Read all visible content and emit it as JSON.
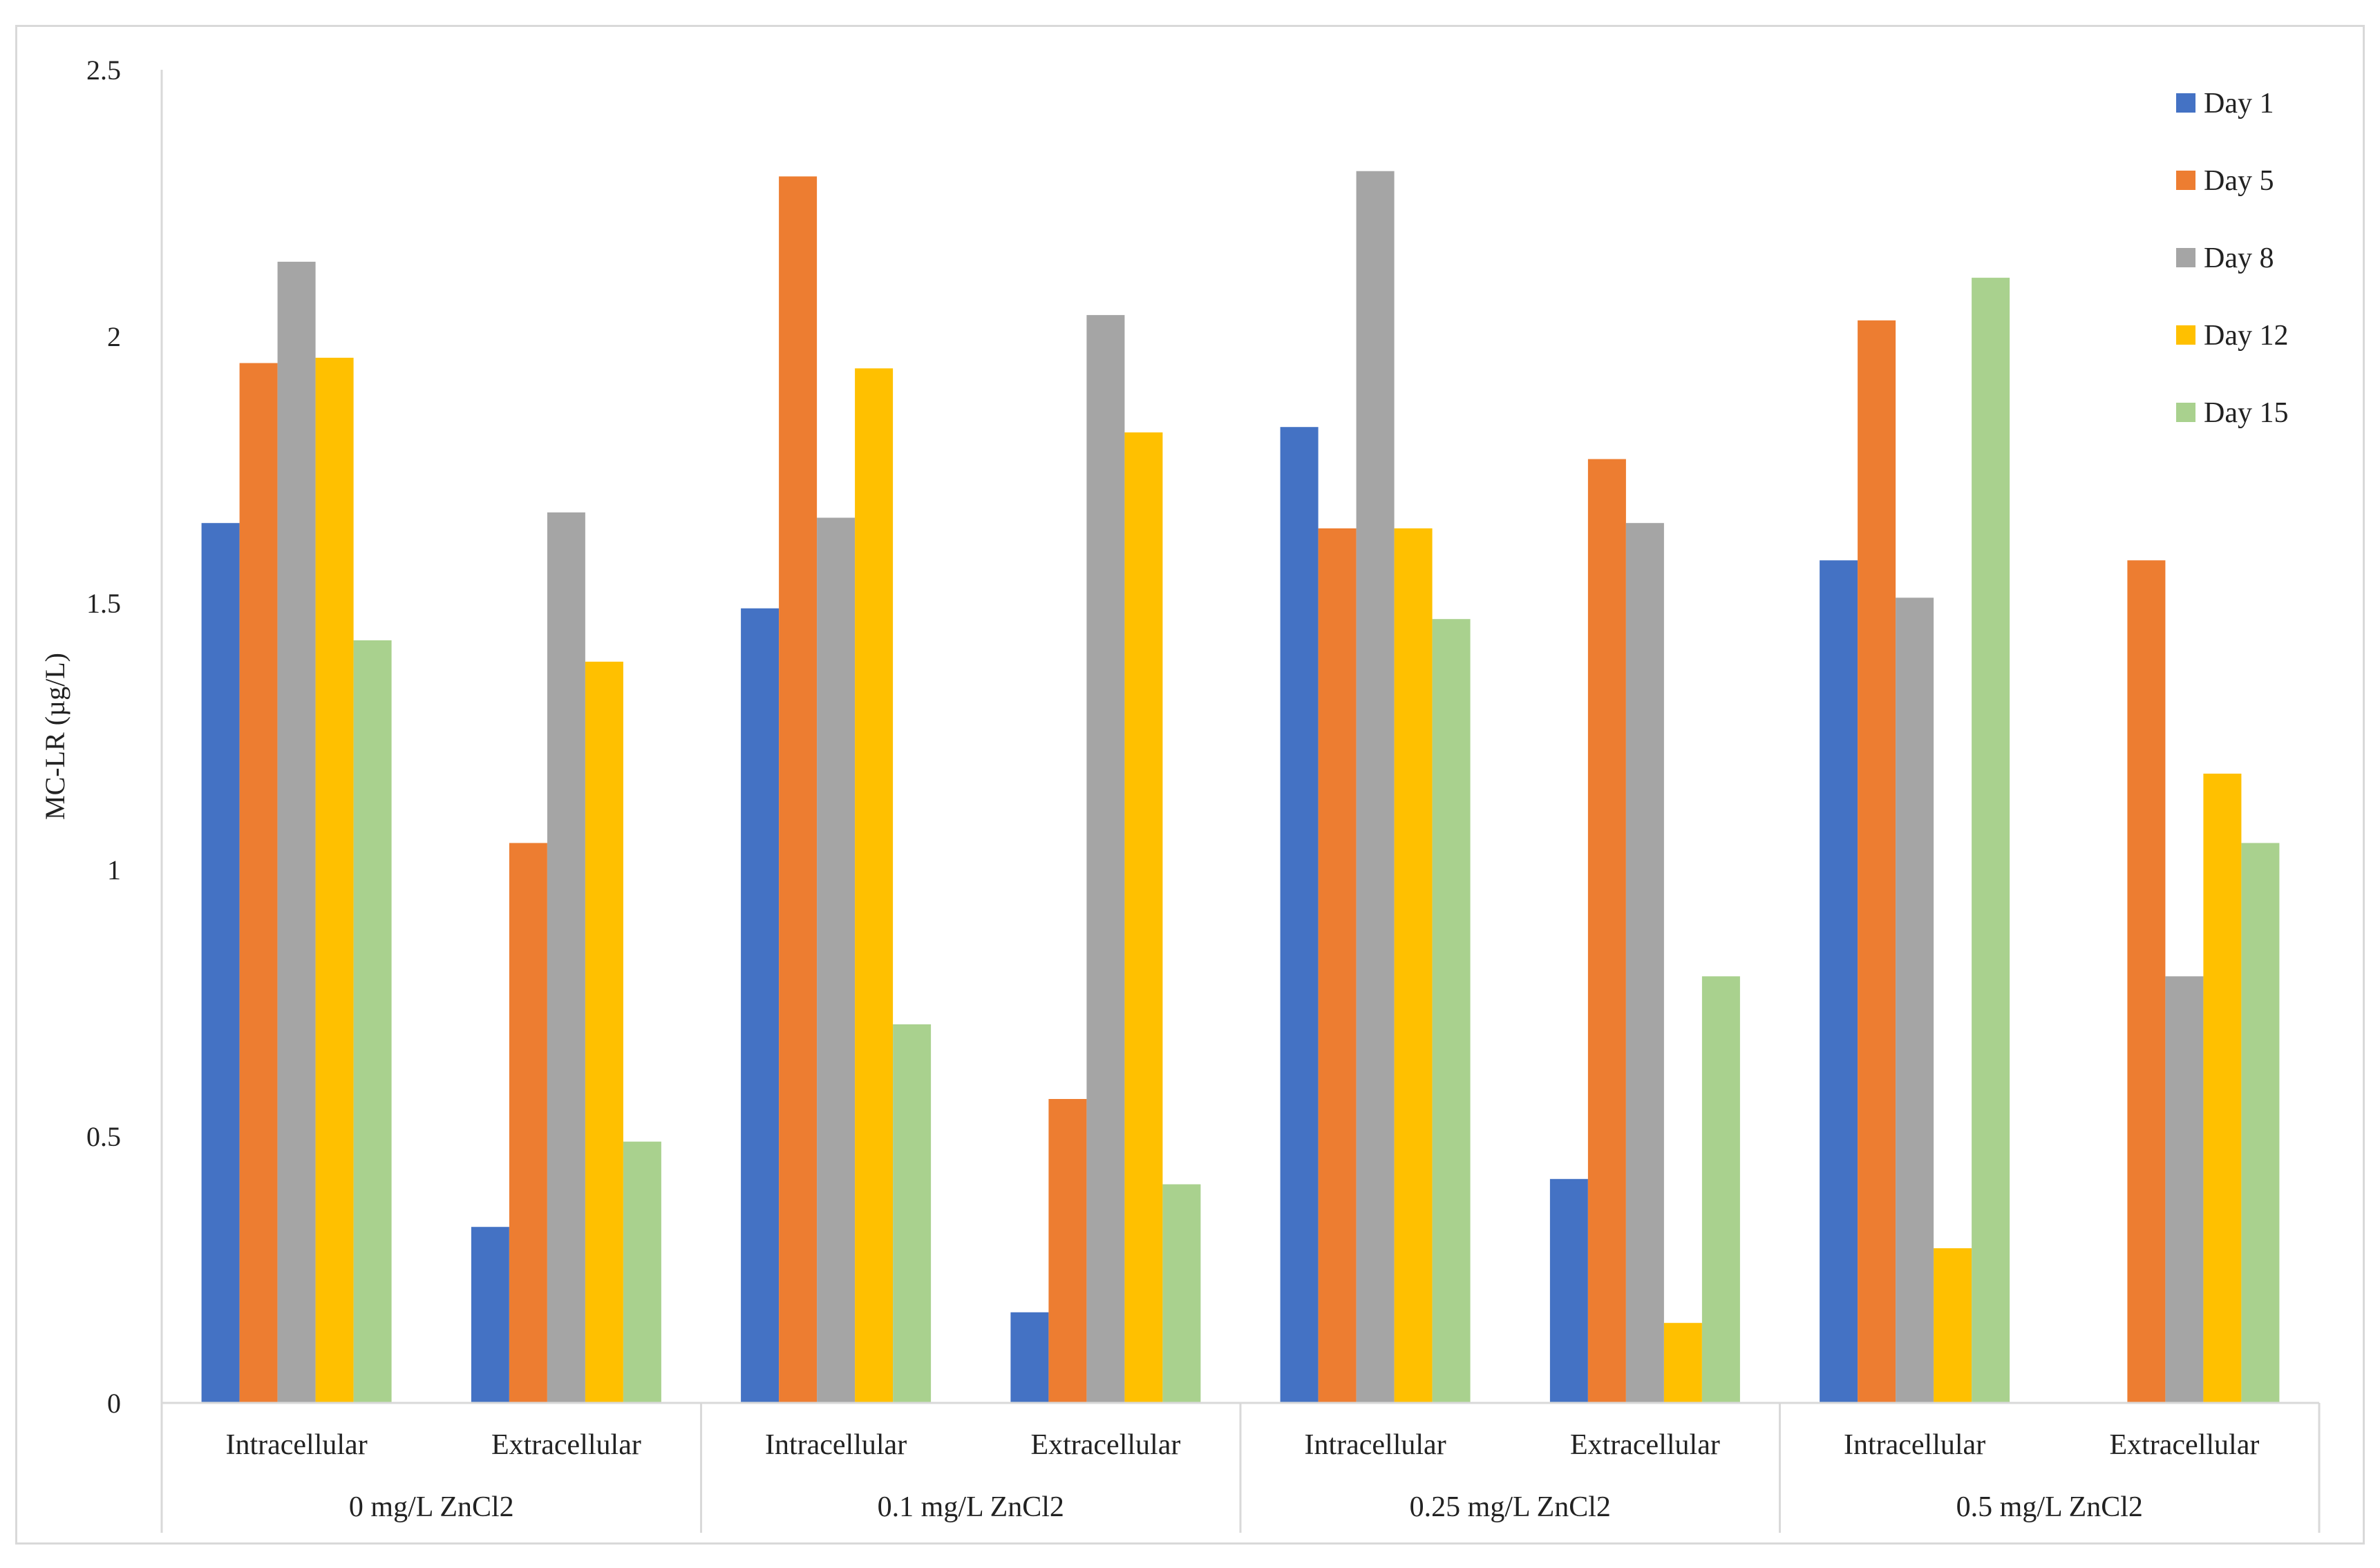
{
  "chart_data": {
    "type": "bar",
    "title": "",
    "ylabel": "MC-LR (µg/L)",
    "xlabel": "",
    "ylim": [
      0,
      2.5
    ],
    "yticks": [
      "0",
      "0.5",
      "1",
      "1.5",
      "2",
      "2.5"
    ],
    "grid": false,
    "legend_position": "top-right",
    "groups": [
      {
        "label": "0 mg/L ZnCl2",
        "subcategories": [
          "Intracellular",
          "Extracellular"
        ]
      },
      {
        "label": "0.1 mg/L ZnCl2",
        "subcategories": [
          "Intracellular",
          "Extracellular"
        ]
      },
      {
        "label": "0.25 mg/L ZnCl2",
        "subcategories": [
          "Intracellular",
          "Extracellular"
        ]
      },
      {
        "label": "0.5 mg/L ZnCl2",
        "subcategories": [
          "Intracellular",
          "Extracellular"
        ]
      }
    ],
    "categories": [
      "Intracellular",
      "Extracellular",
      "Intracellular",
      "Extracellular",
      "Intracellular",
      "Extracellular",
      "Intracellular",
      "Extracellular"
    ],
    "series": [
      {
        "name": "Day 1",
        "color": "#4472c4",
        "values": [
          1.65,
          0.33,
          1.49,
          0.17,
          1.83,
          0.42,
          1.58,
          0
        ]
      },
      {
        "name": "Day 5",
        "color": "#ed7d31",
        "values": [
          1.95,
          1.05,
          2.3,
          0.57,
          1.64,
          1.77,
          2.03,
          1.58
        ]
      },
      {
        "name": "Day 8",
        "color": "#a5a5a5",
        "values": [
          2.14,
          1.67,
          1.66,
          2.04,
          2.31,
          1.65,
          1.51,
          0.8
        ]
      },
      {
        "name": "Day 12",
        "color": "#ffc000",
        "values": [
          1.96,
          1.39,
          1.94,
          1.82,
          1.64,
          0.15,
          0.29,
          1.18
        ]
      },
      {
        "name": "Day 15",
        "color": "#a9d18e",
        "values": [
          1.43,
          0.49,
          0.71,
          0.41,
          1.47,
          0.8,
          2.11,
          1.05
        ]
      }
    ]
  }
}
